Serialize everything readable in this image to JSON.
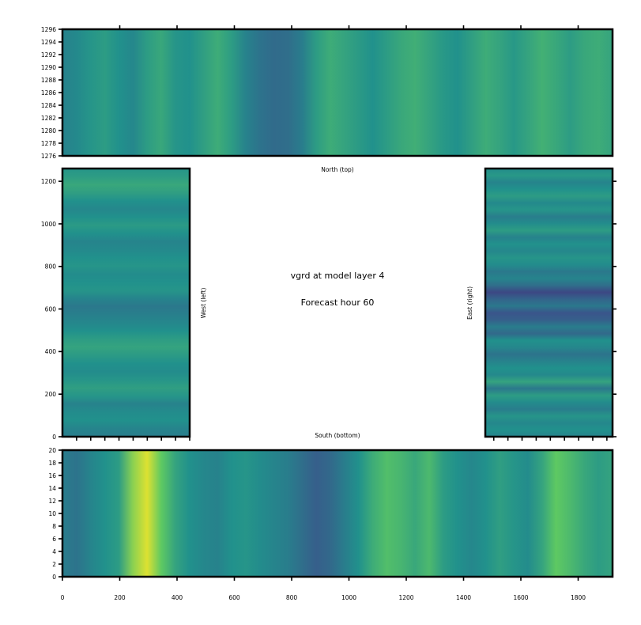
{
  "chart_data": {
    "type": "heatmap",
    "variable_title": "vgrd at model layer 4",
    "forecast_title": "Forecast hour 60",
    "colormap": [
      "#440154",
      "#3b528b",
      "#21918c",
      "#5ec962",
      "#fde725"
    ],
    "panels": {
      "north": {
        "label": "North (top)",
        "x_range": [
          0,
          1920
        ],
        "y_range": [
          1276,
          1296
        ],
        "y_ticks": [
          "1276",
          "1278",
          "1280",
          "1282",
          "1284",
          "1286",
          "1288",
          "1290",
          "1292",
          "1294",
          "1296"
        ],
        "values": [
          0.44,
          0.47,
          0.52,
          0.55,
          0.5,
          0.46,
          0.55,
          0.6,
          0.52,
          0.5,
          0.56,
          0.62,
          0.55,
          0.44,
          0.38,
          0.35,
          0.36,
          0.42,
          0.55,
          0.62,
          0.58,
          0.54,
          0.5,
          0.55,
          0.6,
          0.63,
          0.58,
          0.53,
          0.5,
          0.56,
          0.62,
          0.58,
          0.53,
          0.58,
          0.64,
          0.6,
          0.55,
          0.6,
          0.62,
          0.58
        ]
      },
      "west": {
        "label": "West (left)",
        "x_range": [
          0,
          450
        ],
        "y_range": [
          0,
          1260
        ],
        "y_ticks": [
          "0",
          "200",
          "400",
          "600",
          "800",
          "1000",
          "1200"
        ],
        "values": [
          0.42,
          0.45,
          0.5,
          0.48,
          0.44,
          0.52,
          0.56,
          0.52,
          0.48,
          0.5,
          0.54,
          0.58,
          0.55,
          0.5,
          0.46,
          0.43,
          0.4,
          0.45,
          0.52,
          0.5,
          0.48,
          0.52,
          0.5,
          0.47,
          0.45,
          0.5,
          0.54,
          0.5,
          0.46,
          0.5,
          0.56,
          0.6,
          0.55,
          0.52
        ]
      },
      "east": {
        "label": "East (right)",
        "x_range": [
          1470,
          1920
        ],
        "y_range": [
          0,
          1260
        ],
        "values": [
          0.44,
          0.5,
          0.46,
          0.52,
          0.42,
          0.48,
          0.55,
          0.4,
          0.58,
          0.47,
          0.5,
          0.44,
          0.38,
          0.46,
          0.5,
          0.34,
          0.42,
          0.3,
          0.26,
          0.4,
          0.32,
          0.22,
          0.36,
          0.45,
          0.4,
          0.48,
          0.52,
          0.46,
          0.5,
          0.44,
          0.55,
          0.48,
          0.42,
          0.52,
          0.47,
          0.55,
          0.5,
          0.45,
          0.53,
          0.48
        ]
      },
      "south": {
        "label": "South (bottom)",
        "x_range": [
          0,
          1920
        ],
        "y_range": [
          0,
          20
        ],
        "x_ticks": [
          "0",
          "200",
          "400",
          "600",
          "800",
          "1000",
          "1200",
          "1400",
          "1600",
          "1800"
        ],
        "y_ticks": [
          "0",
          "2",
          "4",
          "6",
          "8",
          "10",
          "12",
          "14",
          "16",
          "18",
          "20"
        ],
        "values": [
          0.42,
          0.38,
          0.45,
          0.5,
          0.55,
          0.82,
          0.95,
          0.75,
          0.58,
          0.5,
          0.46,
          0.44,
          0.5,
          0.52,
          0.48,
          0.45,
          0.42,
          0.36,
          0.3,
          0.34,
          0.42,
          0.5,
          0.62,
          0.7,
          0.66,
          0.6,
          0.68,
          0.55,
          0.5,
          0.46,
          0.5,
          0.56,
          0.52,
          0.48,
          0.58,
          0.75,
          0.68,
          0.6,
          0.55,
          0.58
        ]
      }
    }
  }
}
